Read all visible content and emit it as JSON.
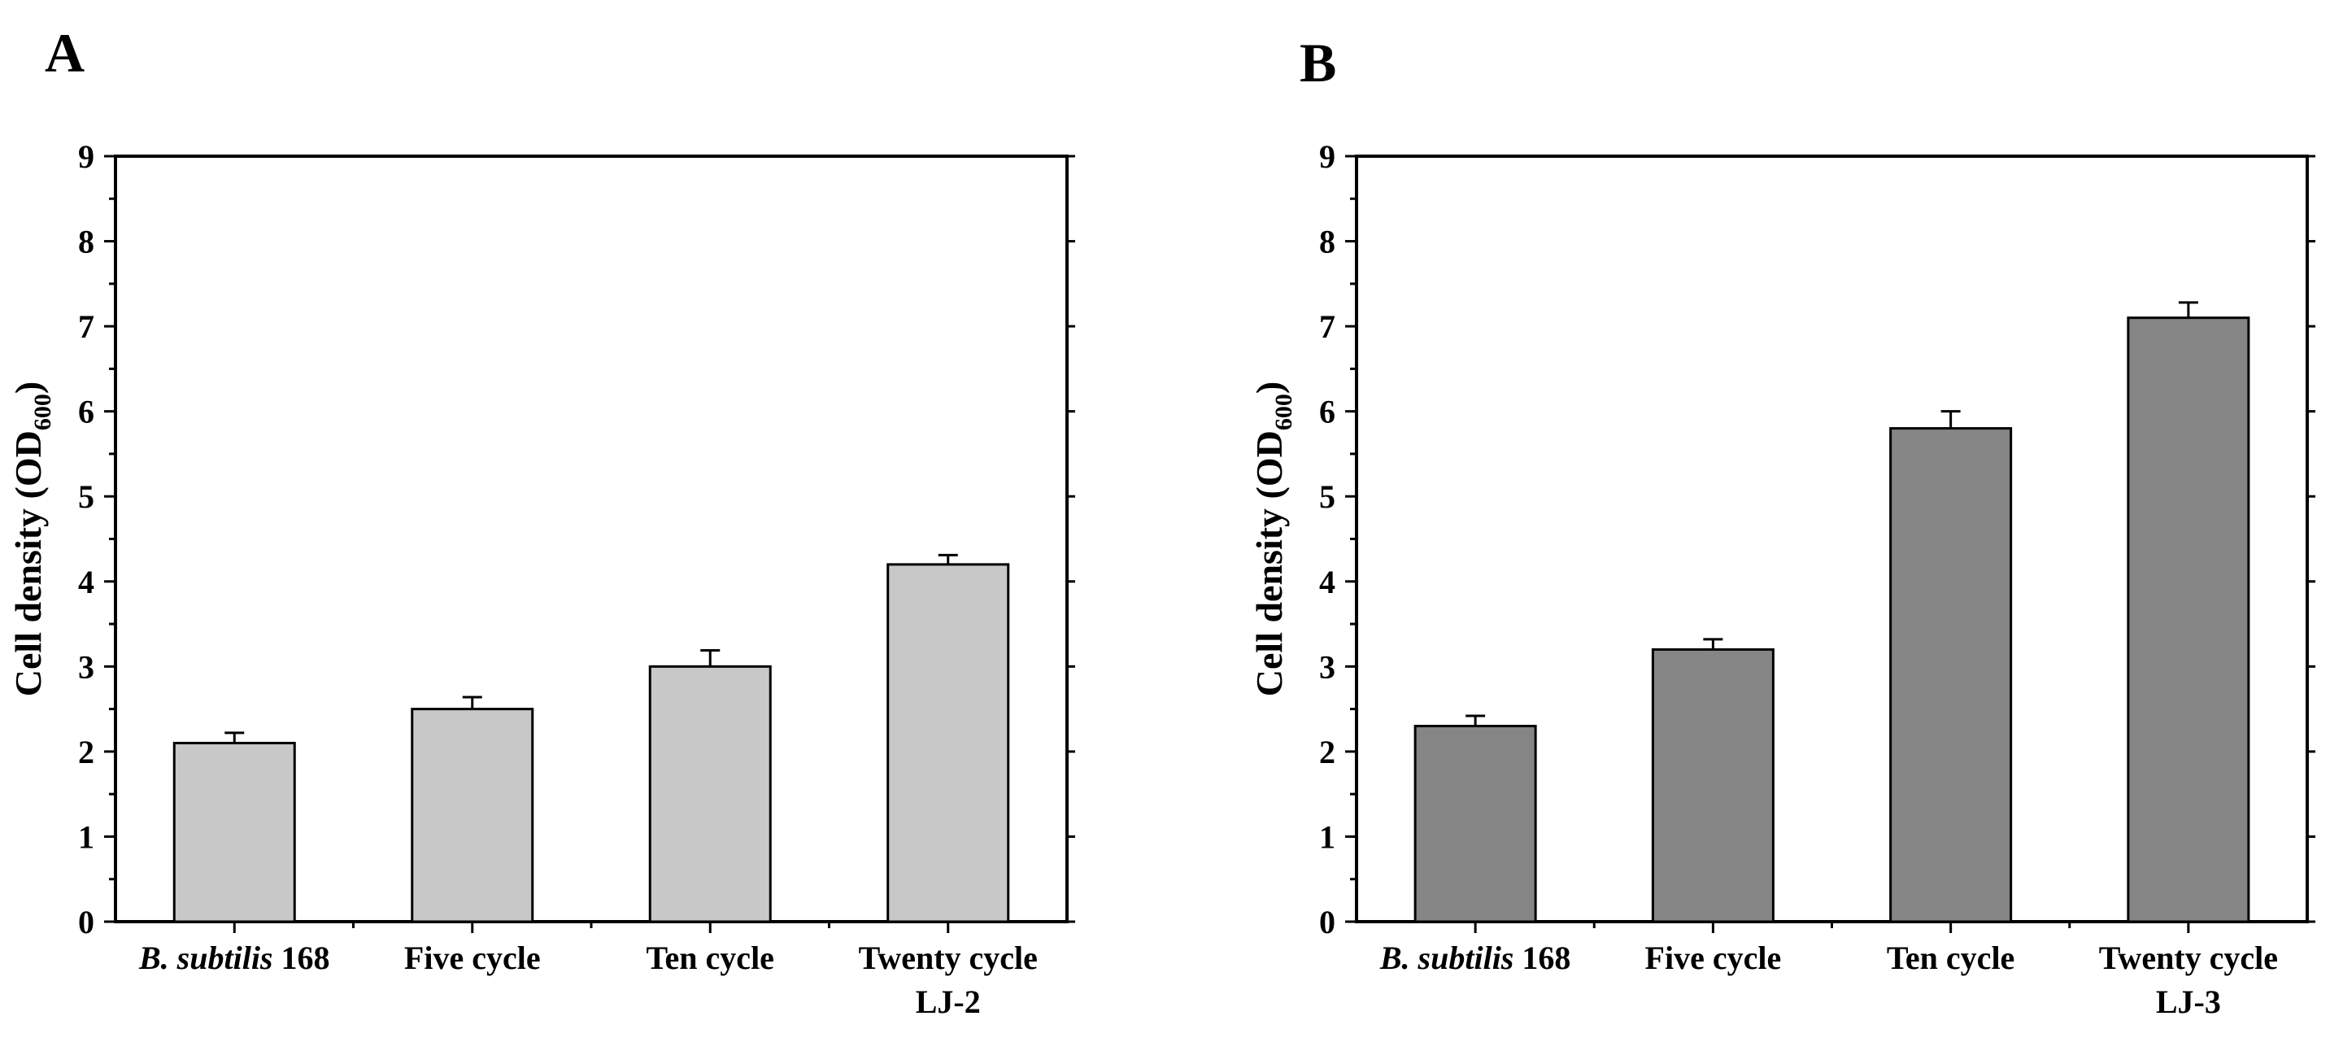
{
  "chart_data": [
    {
      "type": "bar",
      "panel_label": "A",
      "ylabel": "Cell density (OD",
      "ylabel_sub": "600",
      "ylabel_close": ")",
      "ylim": [
        0,
        9
      ],
      "yticks": [
        "0",
        "1",
        "2",
        "3",
        "4",
        "5",
        "6",
        "7",
        "8",
        "9"
      ],
      "categories": [
        {
          "italic": "B. subtilis",
          "rest": " 168",
          "line2": ""
        },
        {
          "italic": "",
          "rest": "Five  cycle",
          "line2": ""
        },
        {
          "italic": "",
          "rest": "Ten cycle",
          "line2": ""
        },
        {
          "italic": "",
          "rest": "Twenty cycle",
          "line2": "LJ-2"
        }
      ],
      "values": [
        2.1,
        2.5,
        3.0,
        4.2
      ],
      "errors": [
        0.12,
        0.14,
        0.19,
        0.11
      ],
      "bar_color": "#c8c8c8",
      "grid": false
    },
    {
      "type": "bar",
      "panel_label": "B",
      "ylabel": "Cell density (OD",
      "ylabel_sub": "600",
      "ylabel_close": ")",
      "ylim": [
        0,
        9
      ],
      "yticks": [
        "0",
        "1",
        "2",
        "3",
        "4",
        "5",
        "6",
        "7",
        "8",
        "9"
      ],
      "categories": [
        {
          "italic": "B. subtilis",
          "rest": " 168",
          "line2": ""
        },
        {
          "italic": "",
          "rest": "Five  cycle",
          "line2": ""
        },
        {
          "italic": "",
          "rest": "Ten cycle",
          "line2": ""
        },
        {
          "italic": "",
          "rest": "Twenty cycle",
          "line2": "LJ-3"
        }
      ],
      "values": [
        2.3,
        3.2,
        5.8,
        7.1
      ],
      "errors": [
        0.12,
        0.12,
        0.2,
        0.18
      ],
      "bar_color": "#858585",
      "grid": false
    }
  ]
}
